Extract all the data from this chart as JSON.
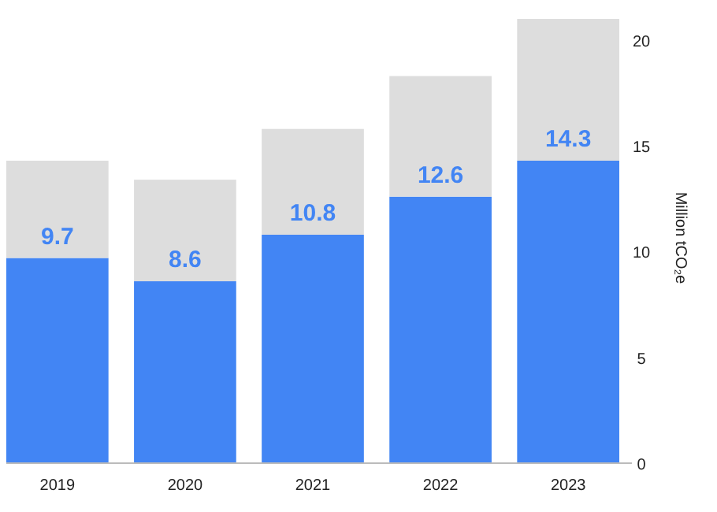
{
  "chart_data": {
    "type": "bar",
    "stacked": true,
    "ylabel": "Million tCO₂e",
    "categories": [
      "2019",
      "2020",
      "2021",
      "2022",
      "2023"
    ],
    "series": [
      {
        "color": "#4285f4",
        "values": [
          9.7,
          8.6,
          10.8,
          12.6,
          14.3
        ],
        "value_labels": [
          "9.7",
          "8.6",
          "10.8",
          "12.6",
          "14.3"
        ]
      },
      {
        "color": "#dddddd",
        "values": [
          4.6,
          4.8,
          5.0,
          5.7,
          6.7
        ]
      }
    ],
    "ylim": [
      0,
      21.3
    ],
    "yticks": [
      0,
      5,
      10,
      15,
      20
    ]
  }
}
